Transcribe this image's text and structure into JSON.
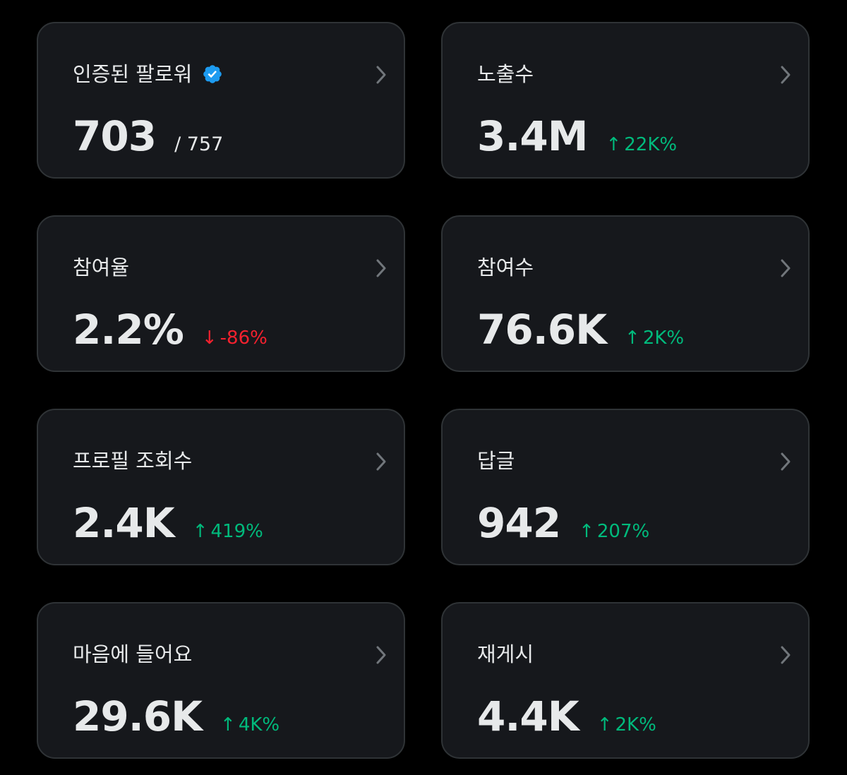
{
  "colors": {
    "background": "#000000",
    "card": "#16181c",
    "border": "#2f3336",
    "text": "#e7e9ea",
    "positive": "#00ba7c",
    "negative": "#f4212e",
    "verified": "#1d9bf0",
    "chevron": "#71767b"
  },
  "cards": [
    {
      "title": "인증된 팔로워",
      "value": "703",
      "total": "/ 757",
      "icon": "verified-badge-icon"
    },
    {
      "title": "노출수",
      "value": "3.4M",
      "delta": {
        "direction": "up",
        "arrow": "↑",
        "text": "22K%"
      }
    },
    {
      "title": "참여율",
      "value": "2.2%",
      "delta": {
        "direction": "down",
        "arrow": "↓",
        "text": "-86%"
      }
    },
    {
      "title": "참여수",
      "value": "76.6K",
      "delta": {
        "direction": "up",
        "arrow": "↑",
        "text": "2K%"
      }
    },
    {
      "title": "프로필 조회수",
      "value": "2.4K",
      "delta": {
        "direction": "up",
        "arrow": "↑",
        "text": "419%"
      }
    },
    {
      "title": "답글",
      "value": "942",
      "delta": {
        "direction": "up",
        "arrow": "↑",
        "text": "207%"
      }
    },
    {
      "title": "마음에 들어요",
      "value": "29.6K",
      "delta": {
        "direction": "up",
        "arrow": "↑",
        "text": "4K%"
      }
    },
    {
      "title": "재게시",
      "value": "4.4K",
      "delta": {
        "direction": "up",
        "arrow": "↑",
        "text": "2K%"
      }
    }
  ]
}
